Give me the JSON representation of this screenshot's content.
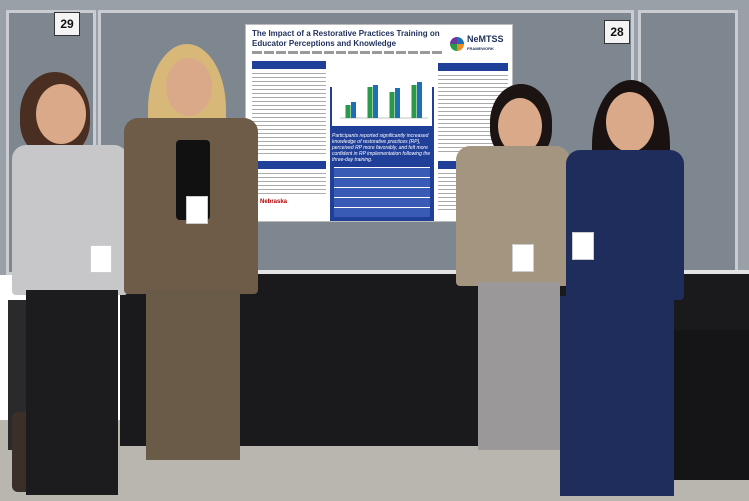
{
  "booth_numbers": {
    "left": "29",
    "right": "28"
  },
  "poster": {
    "title": "The Impact of a Restorative Practices Training on Educator Perceptions and Knowledge",
    "logo_text": "NeMTSS",
    "logo_subtext": "FRAMEWORK",
    "highlight_text": "Participants reported significantly increased knowledge of restorative practices (RP), perceived RP more favorably, and felt more confident in RP implementation following the three-day training.",
    "footer_logo_text": "Nebraska"
  },
  "colors": {
    "poster_accent": "#1f3f99",
    "chart_bar_green": "#2a9a4a",
    "chart_bar_blue": "#1f6fb3"
  },
  "chart_data": {
    "type": "bar",
    "series": [
      {
        "name": "",
        "values": [
          1.3,
          3.1,
          2.6,
          3.3
        ]
      },
      {
        "name": "",
        "values": [
          1.6,
          3.3,
          3.0,
          3.6
        ]
      }
    ],
    "categories": [
      "",
      "",
      "",
      ""
    ],
    "ylim": [
      0,
      4
    ]
  }
}
